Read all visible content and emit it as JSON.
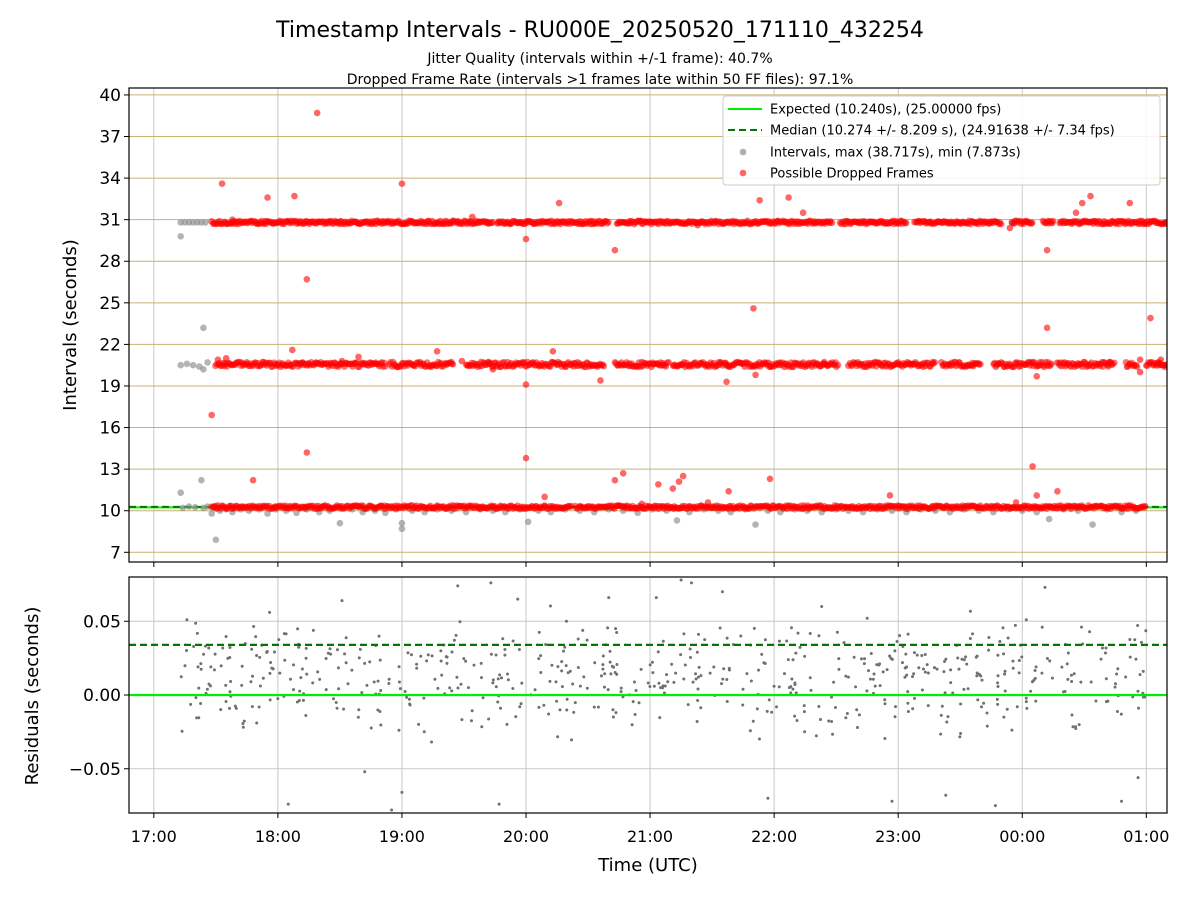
{
  "chart_data": [
    {
      "type": "scatter",
      "title": "Timestamp Intervals - RU000E_20250520_171110_432254",
      "subtitle_lines": [
        "Jitter Quality (intervals within +/-1 frame): 40.7%",
        "Dropped Frame Rate (intervals >1 frames late within 50 FF files): 97.1%"
      ],
      "xlabel": "",
      "ylabel": "Intervals (seconds)",
      "xlim": [
        "16:48",
        "01:10"
      ],
      "ylim": [
        6.3,
        40.5
      ],
      "yticks": [
        7,
        10,
        13,
        16,
        19,
        22,
        25,
        28,
        31,
        34,
        37,
        40
      ],
      "legend_position": "top-right",
      "expected_interval": 10.24,
      "median_interval": 10.274,
      "colors": {
        "expected": "#00ee00",
        "median": "#007700",
        "intervals": "#8c8c8c",
        "dropped": "#ff0000",
        "grid": "#c8b070"
      },
      "legend": [
        {
          "label": "Expected (10.240s), (25.00000 fps)",
          "style": "solid-line",
          "color": "#00ee00"
        },
        {
          "label": "Median (10.274 +/- 8.209 s), (24.91638 +/- 7.34 fps)",
          "style": "dashed-line",
          "color": "#007700"
        },
        {
          "label": "Intervals, max (38.717s), min (7.873s)",
          "style": "dot",
          "color": "#8c8c8c"
        },
        {
          "label": "Possible Dropped Frames",
          "style": "dot",
          "color": "#ff0000"
        }
      ],
      "series": [
        {
          "name": "Intervals, max (38.717s), min (7.873s)",
          "points": [
            [
              "17:13",
              11.3
            ],
            [
              "17:14",
              10.2
            ],
            [
              "17:17",
              10.3
            ],
            [
              "17:20",
              10.25
            ],
            [
              "17:23",
              12.2
            ],
            [
              "17:24",
              10.2
            ],
            [
              "17:26",
              10.3
            ],
            [
              "17:28",
              9.8
            ],
            [
              "17:29",
              10.2
            ],
            [
              "17:30",
              7.9
            ],
            [
              "17:32",
              10.0
            ],
            [
              "17:35",
              10.1
            ],
            [
              "17:38",
              9.9
            ],
            [
              "17:42",
              10.1
            ],
            [
              "17:46",
              10.0
            ],
            [
              "17:51",
              10.1
            ],
            [
              "17:55",
              9.8
            ],
            [
              "17:59",
              10.1
            ],
            [
              "18:04",
              10.0
            ],
            [
              "18:09",
              9.85
            ],
            [
              "18:14",
              10.1
            ],
            [
              "18:20",
              9.9
            ],
            [
              "18:25",
              10.0
            ],
            [
              "18:30",
              9.1
            ],
            [
              "18:36",
              10.1
            ],
            [
              "18:41",
              9.9
            ],
            [
              "18:47",
              10.0
            ],
            [
              "18:52",
              9.85
            ],
            [
              "18:57",
              10.1
            ],
            [
              "19:00",
              8.7
            ],
            [
              "19:00",
              9.1
            ],
            [
              "19:05",
              10.0
            ],
            [
              "19:11",
              9.9
            ],
            [
              "19:17",
              10.1
            ],
            [
              "19:24",
              10.0
            ],
            [
              "19:31",
              9.9
            ],
            [
              "19:38",
              10.1
            ],
            [
              "19:44",
              10.0
            ],
            [
              "19:50",
              9.9
            ],
            [
              "19:57",
              10.1
            ],
            [
              "20:01",
              9.2
            ],
            [
              "20:06",
              10.0
            ],
            [
              "20:12",
              9.9
            ],
            [
              "20:19",
              10.1
            ],
            [
              "20:26",
              10.0
            ],
            [
              "20:33",
              9.9
            ],
            [
              "20:40",
              10.1
            ],
            [
              "20:47",
              10.0
            ],
            [
              "20:54",
              9.85
            ],
            [
              "21:01",
              10.1
            ],
            [
              "21:08",
              10.0
            ],
            [
              "21:13",
              9.3
            ],
            [
              "21:19",
              9.9
            ],
            [
              "21:26",
              10.1
            ],
            [
              "21:33",
              10.0
            ],
            [
              "21:39",
              9.9
            ],
            [
              "21:46",
              10.1
            ],
            [
              "21:51",
              9.0
            ],
            [
              "21:57",
              10.0
            ],
            [
              "22:03",
              9.9
            ],
            [
              "22:10",
              10.1
            ],
            [
              "22:16",
              10.0
            ],
            [
              "22:23",
              9.9
            ],
            [
              "22:30",
              10.1
            ],
            [
              "22:36",
              10.0
            ],
            [
              "22:43",
              9.9
            ],
            [
              "22:50",
              10.1
            ],
            [
              "22:57",
              10.0
            ],
            [
              "23:04",
              9.9
            ],
            [
              "23:11",
              10.1
            ],
            [
              "23:18",
              10.0
            ],
            [
              "23:25",
              9.9
            ],
            [
              "23:32",
              10.1
            ],
            [
              "23:39",
              10.0
            ],
            [
              "23:46",
              9.9
            ],
            [
              "23:53",
              10.1
            ],
            [
              "00:00",
              10.0
            ],
            [
              "00:07",
              9.9
            ],
            [
              "00:13",
              9.4
            ],
            [
              "00:20",
              10.1
            ],
            [
              "00:27",
              10.0
            ],
            [
              "00:34",
              9.0
            ],
            [
              "00:41",
              10.1
            ],
            [
              "00:48",
              9.9
            ],
            [
              "00:55",
              10.0
            ],
            [
              "17:13",
              20.5
            ],
            [
              "17:16",
              20.6
            ],
            [
              "17:19",
              20.5
            ],
            [
              "17:22",
              20.4
            ],
            [
              "17:24",
              23.2
            ],
            [
              "17:24",
              20.2
            ],
            [
              "17:26",
              20.7
            ],
            [
              "17:13",
              29.8
            ],
            [
              "17:13",
              30.8
            ],
            [
              "17:15",
              30.8
            ],
            [
              "17:17",
              30.8
            ],
            [
              "17:19",
              30.8
            ],
            [
              "17:21",
              30.8
            ],
            [
              "17:23",
              30.8
            ],
            [
              "17:25",
              30.8
            ],
            [
              "18:12",
              20.7
            ],
            [
              "19:42",
              20.6
            ],
            [
              "21:37",
              20.5
            ],
            [
              "22:49",
              30.8
            ],
            [
              "23:55",
              30.8
            ]
          ]
        },
        {
          "name": "Possible Dropped Frames",
          "points": [
            [
              "17:28",
              16.9
            ],
            [
              "17:31",
              20.9
            ],
            [
              "17:33",
              33.6
            ],
            [
              "17:35",
              21.0
            ],
            [
              "17:38",
              31.0
            ],
            [
              "17:48",
              12.2
            ],
            [
              "17:55",
              32.6
            ],
            [
              "18:08",
              32.7
            ],
            [
              "18:07",
              21.6
            ],
            [
              "18:14",
              26.7
            ],
            [
              "18:14",
              14.2
            ],
            [
              "18:19",
              38.7
            ],
            [
              "18:31",
              20.8
            ],
            [
              "18:39",
              21.1
            ],
            [
              "19:00",
              33.6
            ],
            [
              "19:17",
              21.5
            ],
            [
              "19:29",
              20.8
            ],
            [
              "19:34",
              31.2
            ],
            [
              "19:44",
              20.2
            ],
            [
              "20:00",
              29.6
            ],
            [
              "20:00",
              19.1
            ],
            [
              "20:00",
              13.8
            ],
            [
              "20:09",
              11.0
            ],
            [
              "20:13",
              21.5
            ],
            [
              "20:16",
              32.2
            ],
            [
              "20:36",
              19.4
            ],
            [
              "20:43",
              28.8
            ],
            [
              "20:43",
              12.2
            ],
            [
              "20:47",
              12.7
            ],
            [
              "20:56",
              10.5
            ],
            [
              "21:04",
              11.9
            ],
            [
              "21:11",
              11.6
            ],
            [
              "21:14",
              12.1
            ],
            [
              "21:16",
              12.5
            ],
            [
              "21:23",
              30.6
            ],
            [
              "21:28",
              10.6
            ],
            [
              "21:37",
              19.3
            ],
            [
              "21:38",
              11.4
            ],
            [
              "21:50",
              24.6
            ],
            [
              "21:51",
              19.8
            ],
            [
              "21:53",
              32.4
            ],
            [
              "21:58",
              12.3
            ],
            [
              "22:07",
              32.6
            ],
            [
              "22:14",
              31.5
            ],
            [
              "22:24",
              20.6
            ],
            [
              "22:56",
              11.1
            ],
            [
              "23:06",
              20.6
            ],
            [
              "23:36",
              20.5
            ],
            [
              "23:54",
              30.4
            ],
            [
              "23:57",
              10.6
            ],
            [
              "00:05",
              13.2
            ],
            [
              "00:07",
              11.1
            ],
            [
              "00:07",
              19.7
            ],
            [
              "00:12",
              23.2
            ],
            [
              "00:12",
              28.8
            ],
            [
              "00:14",
              20.6
            ],
            [
              "00:17",
              11.4
            ],
            [
              "00:26",
              31.5
            ],
            [
              "00:29",
              32.2
            ],
            [
              "00:33",
              32.7
            ],
            [
              "00:42",
              20.7
            ],
            [
              "00:52",
              32.2
            ],
            [
              "00:57",
              20.0
            ],
            [
              "00:57",
              20.9
            ],
            [
              "01:07",
              20.9
            ],
            [
              "01:02",
              23.9
            ],
            [
              "01:06",
              20.5
            ],
            [
              "01:09",
              20.5
            ],
            [
              "01:09",
              30.8
            ]
          ],
          "bands": [
            {
              "y": 10.26,
              "spread": 0.12,
              "ranges": [
                [
                  "17:28",
                  "20:22"
                ],
                [
                  "20:24",
                  "01:00"
                ]
              ]
            },
            {
              "y": 20.55,
              "spread": 0.18,
              "ranges": [
                [
                  "17:30",
                  "18:52"
                ],
                [
                  "18:54",
                  "19:25"
                ],
                [
                  "19:31",
                  "20:38"
                ],
                [
                  "20:43",
                  "21:09"
                ],
                [
                  "21:11",
                  "22:31"
                ],
                [
                  "22:36",
                  "23:18"
                ],
                [
                  "23:21",
                  "23:40"
                ],
                [
                  "23:46",
                  "00:14"
                ],
                [
                  "00:17",
                  "00:45"
                ],
                [
                  "00:50",
                  "00:56"
                ],
                [
                  "01:00",
                  "01:10"
                ]
              ]
            },
            {
              "y": 30.8,
              "spread": 0.12,
              "ranges": [
                [
                  "17:28",
                  "19:44"
                ],
                [
                  "19:46",
                  "20:40"
                ],
                [
                  "20:44",
                  "22:28"
                ],
                [
                  "22:32",
                  "23:04"
                ],
                [
                  "23:08",
                  "23:50"
                ],
                [
                  "23:55",
                  "00:05"
                ],
                [
                  "00:10",
                  "00:15"
                ],
                [
                  "00:18",
                  "01:10"
                ]
              ]
            }
          ]
        }
      ]
    },
    {
      "type": "scatter",
      "xlabel": "Time (UTC)",
      "ylabel": "Residuals (seconds)",
      "xlim": [
        "16:48",
        "01:10"
      ],
      "ylim": [
        -0.08,
        0.08
      ],
      "yticks": [
        -0.05,
        0.0,
        0.05
      ],
      "ytick_labels": [
        "−0.05",
        "0.00",
        "0.05"
      ],
      "xticks": [
        "17:00",
        "18:00",
        "19:00",
        "20:00",
        "21:00",
        "22:00",
        "23:00",
        "00:00",
        "01:00"
      ],
      "reference_lines": [
        {
          "y": 0.0,
          "style": "solid",
          "color": "#00ee00"
        },
        {
          "y": 0.034,
          "style": "dashed",
          "color": "#007700"
        }
      ],
      "residual_range": {
        "from": "17:13",
        "to": "01:00",
        "min": -0.078,
        "max": 0.078,
        "count": 600,
        "color": "#707070"
      },
      "notable_points": [
        [
          "17:16",
          0.051
        ],
        [
          "17:56",
          0.056
        ],
        [
          "18:05",
          -0.074
        ],
        [
          "18:31",
          0.064
        ],
        [
          "18:42",
          -0.052
        ],
        [
          "18:55",
          -0.078
        ],
        [
          "19:00",
          -0.066
        ],
        [
          "19:27",
          0.074
        ],
        [
          "19:43",
          0.076
        ],
        [
          "19:47",
          -0.074
        ],
        [
          "19:56",
          0.065
        ],
        [
          "20:40",
          0.066
        ],
        [
          "21:03",
          0.066
        ],
        [
          "21:15",
          0.078
        ],
        [
          "21:20",
          0.076
        ],
        [
          "21:35",
          0.07
        ],
        [
          "21:57",
          -0.07
        ],
        [
          "22:23",
          0.06
        ],
        [
          "22:45",
          0.052
        ],
        [
          "22:57",
          -0.072
        ],
        [
          "23:23",
          -0.068
        ],
        [
          "23:47",
          -0.075
        ],
        [
          "00:11",
          0.073
        ],
        [
          "00:48",
          -0.072
        ],
        [
          "00:56",
          -0.056
        ]
      ]
    }
  ]
}
